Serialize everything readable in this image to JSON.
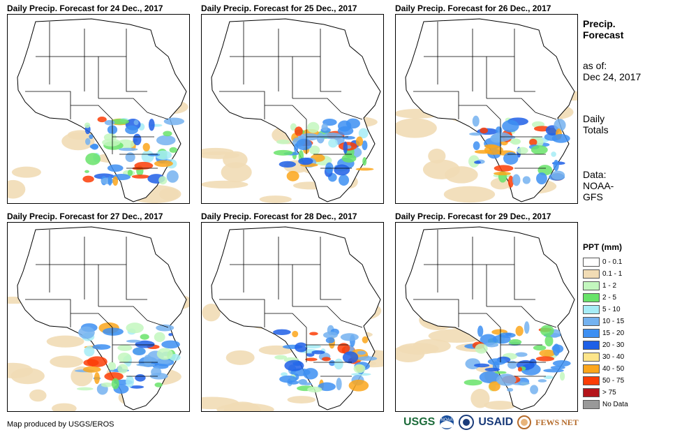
{
  "panels": [
    {
      "title": "Daily Precip. Forecast for 24 Dec., 2017"
    },
    {
      "title": "Daily Precip. Forecast for 25 Dec., 2017"
    },
    {
      "title": "Daily Precip. Forecast for 26 Dec., 2017"
    },
    {
      "title": "Daily Precip. Forecast for 27 Dec., 2017"
    },
    {
      "title": "Daily Precip. Forecast for 28 Dec., 2017"
    },
    {
      "title": "Daily Precip. Forecast for 29 Dec., 2017"
    }
  ],
  "sidebar": {
    "heading_line1": "Precip.",
    "heading_line2": "Forecast",
    "asof_label": "as of:",
    "asof_date": "Dec 24, 2017",
    "totals_line1": "Daily",
    "totals_line2": "Totals",
    "data_label": "Data:",
    "data_line1": "NOAA-",
    "data_line2": "GFS"
  },
  "legend": {
    "title": "PPT (mm)",
    "items": [
      {
        "label": "0 - 0.1",
        "color": "#ffffff"
      },
      {
        "label": "0.1 - 1",
        "color": "#f1dcb5"
      },
      {
        "label": "1 - 2",
        "color": "#c3f7be"
      },
      {
        "label": "2 - 5",
        "color": "#69e36a"
      },
      {
        "label": "5 - 10",
        "color": "#a6ecf6"
      },
      {
        "label": "10 - 15",
        "color": "#74b2f0"
      },
      {
        "label": "15 - 20",
        "color": "#3d8ff2"
      },
      {
        "label": "20 - 30",
        "color": "#1e5fe6"
      },
      {
        "label": "30 - 40",
        "color": "#fde58a"
      },
      {
        "label": "40 - 50",
        "color": "#fca61b"
      },
      {
        "label": "50 - 75",
        "color": "#fb3d06"
      },
      {
        "label": "> 75",
        "color": "#b4141a"
      },
      {
        "label": "No Data",
        "color": "#999999"
      }
    ]
  },
  "footer": {
    "credit": "Map produced by USGS/EROS",
    "logos": [
      "USGS",
      "NOAA",
      "USAID",
      "FEWS NET"
    ]
  }
}
